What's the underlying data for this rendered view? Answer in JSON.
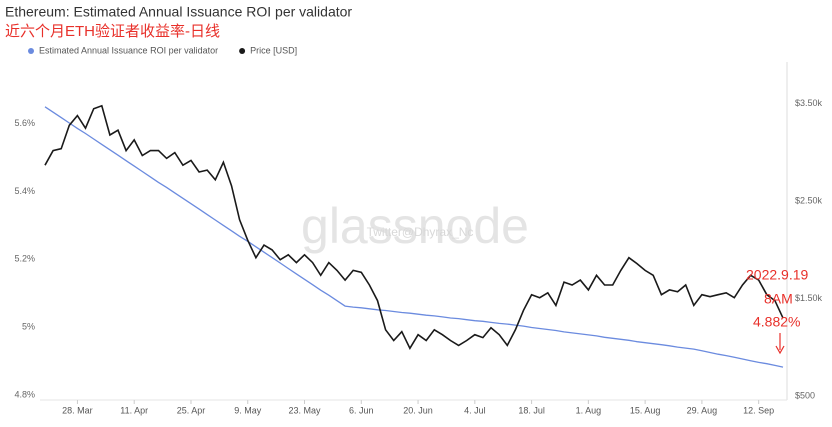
{
  "chart_data": {
    "type": "line",
    "title": "Ethereum: Estimated Annual Issuance ROI per validator",
    "subtitle": "近六个月ETH验证者收益率-日线",
    "watermark": "glassnode",
    "watermark_handle": "Twitter@Dhyrax_Nc",
    "annotations": [
      "2022.9.19",
      "8AM",
      "4.882%"
    ],
    "categories": [
      null,
      null,
      null,
      null,
      "28. Mar",
      null,
      null,
      null,
      null,
      null,
      null,
      "11. Apr",
      null,
      null,
      null,
      null,
      null,
      null,
      "25. Apr",
      null,
      null,
      null,
      null,
      null,
      null,
      "9. May",
      null,
      null,
      null,
      null,
      null,
      null,
      "23. May",
      null,
      null,
      null,
      null,
      null,
      null,
      "6. Jun",
      null,
      null,
      null,
      null,
      null,
      null,
      "20. Jun",
      null,
      null,
      null,
      null,
      null,
      null,
      "4. Jul",
      null,
      null,
      null,
      null,
      null,
      null,
      "18. Jul",
      null,
      null,
      null,
      null,
      null,
      null,
      "1. Aug",
      null,
      null,
      null,
      null,
      null,
      null,
      "15. Aug",
      null,
      null,
      null,
      null,
      null,
      null,
      "29. Aug",
      null,
      null,
      null,
      null,
      null,
      null,
      "12. Sep",
      null,
      null,
      null
    ],
    "series": [
      {
        "name": "Estimated Annual Issuance ROI per validator",
        "color": "#6b8bdf",
        "axis": "y",
        "values": [
          5.65,
          5.634,
          5.618,
          5.602,
          5.586,
          5.571,
          5.555,
          5.539,
          5.523,
          5.507,
          5.491,
          5.475,
          5.459,
          5.443,
          5.427,
          5.412,
          5.396,
          5.38,
          5.364,
          5.348,
          5.332,
          5.316,
          5.3,
          5.284,
          5.268,
          5.253,
          5.237,
          5.221,
          5.205,
          5.189,
          5.173,
          5.157,
          5.141,
          5.125,
          5.109,
          5.094,
          5.078,
          5.062,
          5.059,
          5.057,
          5.054,
          5.051,
          5.049,
          5.046,
          5.043,
          5.041,
          5.038,
          5.035,
          5.033,
          5.03,
          5.027,
          5.025,
          5.022,
          5.019,
          5.017,
          5.014,
          5.011,
          5.009,
          5.006,
          5.003,
          4.999,
          4.996,
          4.993,
          4.99,
          4.986,
          4.983,
          4.98,
          4.977,
          4.974,
          4.97,
          4.967,
          4.964,
          4.961,
          4.957,
          4.954,
          4.951,
          4.948,
          4.945,
          4.941,
          4.938,
          4.935,
          4.93,
          4.925,
          4.92,
          4.916,
          4.911,
          4.906,
          4.901,
          4.896,
          4.892,
          4.887,
          4.882
        ]
      },
      {
        "name": "Price [USD]",
        "color": "#1a1a1a",
        "axis": "y2",
        "values": [
          2870,
          3020,
          3040,
          3280,
          3380,
          3250,
          3450,
          3480,
          3180,
          3230,
          3020,
          3130,
          2970,
          3020,
          3020,
          2940,
          3000,
          2870,
          2920,
          2800,
          2820,
          2720,
          2900,
          2660,
          2310,
          2100,
          1920,
          2050,
          2000,
          1900,
          1950,
          1870,
          1950,
          1870,
          1740,
          1870,
          1790,
          1690,
          1790,
          1770,
          1640,
          1480,
          1180,
          1070,
          1160,
          990,
          1130,
          1070,
          1180,
          1130,
          1070,
          1020,
          1070,
          1130,
          1100,
          1200,
          1130,
          1020,
          1180,
          1380,
          1540,
          1510,
          1560,
          1430,
          1670,
          1640,
          1690,
          1590,
          1740,
          1640,
          1640,
          1790,
          1920,
          1860,
          1790,
          1740,
          1540,
          1590,
          1570,
          1640,
          1430,
          1540,
          1520,
          1540,
          1560,
          1510,
          1640,
          1740,
          1690,
          1540,
          1480,
          1300
        ]
      }
    ],
    "ylim": [
      4.785,
      5.782
    ],
    "yticks": [
      {
        "value": 4.8,
        "label": "4.8%"
      },
      {
        "value": 5,
        "label": "5%"
      },
      {
        "value": 5.2,
        "label": "5.2%"
      },
      {
        "value": 5.4,
        "label": "5.4%"
      },
      {
        "value": 5.6,
        "label": "5.6%"
      }
    ],
    "y2lim": [
      459,
      3930
    ],
    "y2ticks": [
      {
        "value": 500,
        "label": "$500"
      },
      {
        "value": 1500,
        "label": "$1.50k"
      },
      {
        "value": 2500,
        "label": "$2.50k"
      },
      {
        "value": 3500,
        "label": "$3.50k"
      }
    ],
    "annotation_color": "#e8302a"
  }
}
